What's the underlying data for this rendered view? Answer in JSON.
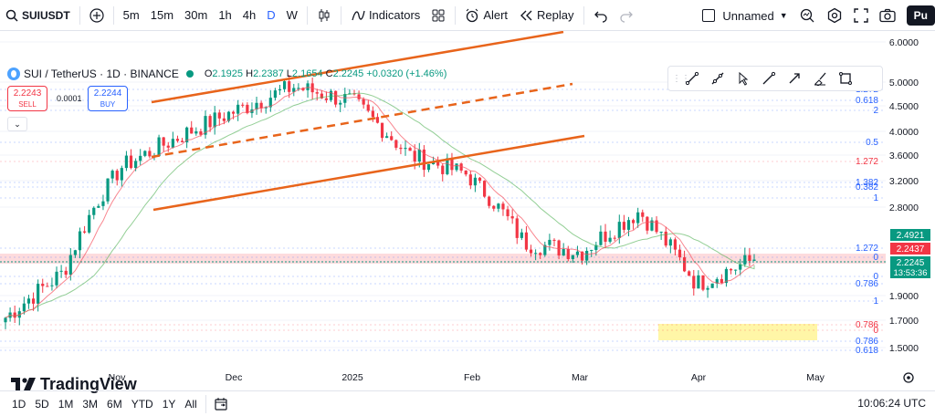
{
  "toolbar": {
    "symbol": "SUIUSDT",
    "timeframes": [
      "5m",
      "15m",
      "30m",
      "1h",
      "4h",
      "D",
      "W"
    ],
    "active_timeframe": "D",
    "indicators_label": "Indicators",
    "alert_label": "Alert",
    "replay_label": "Replay",
    "layout_name": "Unnamed",
    "publish_label": "Pu"
  },
  "legend": {
    "title": "SUI / TetherUS · 1D · BINANCE",
    "open_label": "O",
    "open": "2.1925",
    "high_label": "H",
    "high": "2.2387",
    "low_label": "L",
    "low": "2.1654",
    "close_label": "C",
    "close": "2.2245",
    "change": "+0.0320 (+1.46%)"
  },
  "trade": {
    "sell_price": "2.2243",
    "sell_label": "SELL",
    "buy_price": "2.2244",
    "buy_label": "BUY",
    "spread": "0.0001"
  },
  "price_axis": {
    "ticks": [
      "6.0000",
      "5.0000",
      "4.5000",
      "4.0000",
      "3.6000",
      "3.2000",
      "2.8000",
      "1.9000",
      "1.7000",
      "1.5000"
    ],
    "ma_label": "2.4921",
    "ma2_label": "2.2437",
    "last_price": "2.2245",
    "countdown": "13:53:36"
  },
  "fib_labels": [
    {
      "text": "1.272",
      "color": "#2962ff"
    },
    {
      "text": "0.618",
      "color": "#2962ff"
    },
    {
      "text": "2",
      "color": "#2962ff"
    },
    {
      "text": "0.5",
      "color": "#2962ff"
    },
    {
      "text": "1.272",
      "color": "#f23645"
    },
    {
      "text": "1.382",
      "color": "#2962ff"
    },
    {
      "text": "0.382",
      "color": "#2962ff"
    },
    {
      "text": "1",
      "color": "#2962ff"
    },
    {
      "text": "1.272",
      "color": "#2962ff"
    },
    {
      "text": "0",
      "color": "#2962ff"
    },
    {
      "text": "0",
      "color": "#2962ff"
    },
    {
      "text": "0.786",
      "color": "#2962ff"
    },
    {
      "text": "1",
      "color": "#2962ff"
    },
    {
      "text": "0.786",
      "color": "#f23645"
    },
    {
      "text": "0",
      "color": "#f23645"
    },
    {
      "text": "0.786",
      "color": "#2962ff"
    },
    {
      "text": "0.618",
      "color": "#2962ff"
    }
  ],
  "time_axis": [
    "Nov",
    "Dec",
    "2025",
    "Feb",
    "Mar",
    "Apr",
    "May"
  ],
  "ranges": [
    "1D",
    "5D",
    "1M",
    "3M",
    "6M",
    "YTD",
    "1Y",
    "All"
  ],
  "clock": "10:06:24 UTC",
  "logo_text": "TradingView",
  "colors": {
    "up": "#089981",
    "down": "#f23645",
    "channel": "#e8641b",
    "ma_fast": "#f7525f",
    "ma_slow": "#4caf50",
    "accent": "#2962ff",
    "zone": "#fff59d"
  },
  "chart_data": {
    "type": "candlestick",
    "symbol": "SUI / TetherUS",
    "interval": "1D",
    "y_axis_labels": [
      6.0,
      5.0,
      4.5,
      4.0,
      3.6,
      3.2,
      2.8,
      1.9,
      1.7,
      1.5
    ],
    "x_axis_labels": [
      "Nov",
      "Dec",
      "2025",
      "Feb",
      "Mar",
      "Apr",
      "May"
    ],
    "approx_close_path": [
      {
        "t": "Oct",
        "v": 1.72
      },
      {
        "t": "Nov",
        "v": 2.1
      },
      {
        "t": "Nov mid",
        "v": 3.4
      },
      {
        "t": "Dec",
        "v": 3.9
      },
      {
        "t": "Dec mid",
        "v": 4.4
      },
      {
        "t": "2025",
        "v": 4.9
      },
      {
        "t": "Jan mid",
        "v": 4.6
      },
      {
        "t": "Feb",
        "v": 3.6
      },
      {
        "t": "Feb mid",
        "v": 3.3
      },
      {
        "t": "Mar",
        "v": 2.4
      },
      {
        "t": "Mar mid",
        "v": 2.3
      },
      {
        "t": "Mar end",
        "v": 2.75
      },
      {
        "t": "Apr",
        "v": 2.0
      },
      {
        "t": "Apr mid",
        "v": 2.2245
      }
    ],
    "last_close": 2.2245,
    "ma_fast_last": 2.2437,
    "ma_slow_last": 2.4921
  }
}
